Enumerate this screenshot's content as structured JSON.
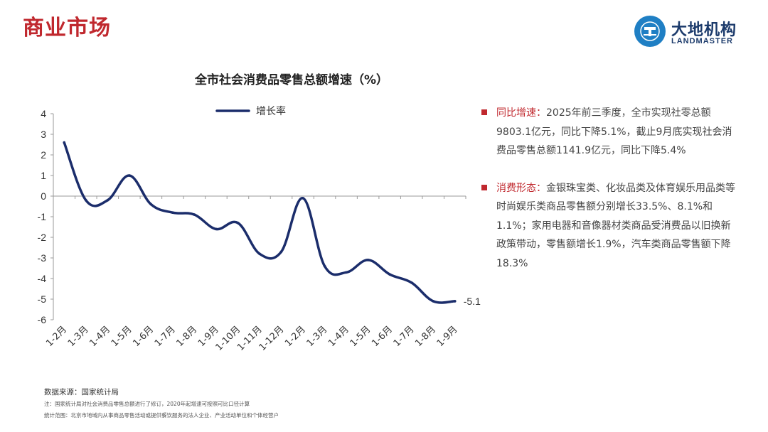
{
  "header": {
    "title": "商业市场",
    "logo_cn": "大地机构",
    "logo_en": "LANDMASTER"
  },
  "chart_data": {
    "type": "line",
    "title": "全市社会消费品零售总额增速（%）",
    "legend_position": "top",
    "grid": false,
    "ylim": [
      -6,
      4
    ],
    "yticks": [
      "4",
      "3",
      "2",
      "1",
      "0",
      "-1",
      "-2",
      "-3",
      "-4",
      "-5",
      "-6"
    ],
    "categories": [
      "1-2月",
      "1-3月",
      "1-4月",
      "1-5月",
      "1-6月",
      "1-7月",
      "1-8月",
      "1-9月",
      "1-10月",
      "1-11月",
      "1-12月",
      "1-2月",
      "1-3月",
      "1-4月",
      "1-5月",
      "1-6月",
      "1-7月",
      "1-8月",
      "1-9月"
    ],
    "series": [
      {
        "name": "增长率",
        "color": "#1b2d6b",
        "values": [
          2.6,
          -0.2,
          -0.2,
          1.0,
          -0.4,
          -0.8,
          -0.9,
          -1.6,
          -1.3,
          -2.8,
          -2.7,
          -0.1,
          -3.4,
          -3.7,
          -3.1,
          -3.8,
          -4.2,
          -5.1,
          -5.1
        ]
      }
    ],
    "end_label": "-5.1"
  },
  "bullets": [
    {
      "heading": "同比增速：",
      "text": "2025年前三季度，全市实现社零总额9803.1亿元，同比下降5.1%，截止9月底实现社会消费品零售总额1141.9亿元，同比下降5.4%"
    },
    {
      "heading": "消费形态：",
      "text": "金银珠宝类、化妆品类及体育娱乐用品类等时尚娱乐类商品零售额分别增长33.5%、8.1%和1.1%；家用电器和音像器材类商品受消费品以旧换新政策带动，零售额增长1.9%，汽车类商品零售额下降18.3%"
    }
  ],
  "notes": {
    "source": "数据来源：国家统计局",
    "note": "注：国家统计局对社会消费品零售总额进行了修订，2020年起增速可按照可比口径计算",
    "scope": "统计范围：北京市地域内从事商品零售活动或提供餐饮服务的法人企业、产业活动单位和个体经营户"
  }
}
